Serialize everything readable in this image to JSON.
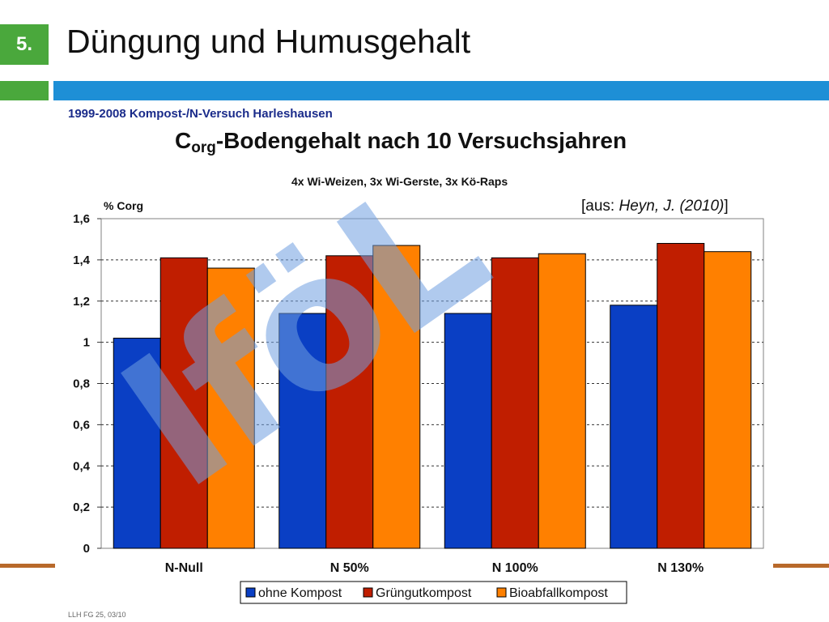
{
  "slide": {
    "number": "5.",
    "title": "Düngung und Humusgehalt",
    "footer": "LLH FG 25, 03/10"
  },
  "header_text": {
    "study": "1999-2008 Kompost-/N-Versuch Harleshausen",
    "title_main": "C",
    "title_sub": "org",
    "title_rest": "-Bodengehalt nach 10 Versuchsjahren",
    "subtitle": "4x Wi-Weizen, 3x Wi-Gerste, 3x Kö-Raps",
    "source_prefix": "[aus: ",
    "source_author": "Heyn, J. (2010)",
    "source_suffix": "]"
  },
  "watermark": {
    "text": "IföL",
    "color": "#6f9fe0"
  },
  "colors": {
    "green": "#4aa83c",
    "blue_strip": "#1e8fd6",
    "brown": "#b8692a"
  },
  "chart_data": {
    "type": "bar",
    "title": "Corg-Bodengehalt nach 10 Versuchsjahren",
    "subtitle": "4x Wi-Weizen, 3x Wi-Gerste, 3x Kö-Raps",
    "ylabel": "% Corg",
    "xlabel": "",
    "ylim": [
      0,
      1.6
    ],
    "yticks": [
      "0",
      "0,2",
      "0,4",
      "0,6",
      "0,8",
      "1",
      "1,2",
      "1,4",
      "1,6"
    ],
    "grid": true,
    "legend_position": "bottom",
    "categories": [
      "N-Null",
      "N 50%",
      "N 100%",
      "N 130%"
    ],
    "series": [
      {
        "name": "ohne Kompost",
        "color": "#0a3fc4",
        "values": [
          1.02,
          1.14,
          1.14,
          1.18
        ]
      },
      {
        "name": "Grüngutkompost",
        "color": "#c01e00",
        "values": [
          1.41,
          1.42,
          1.41,
          1.48
        ]
      },
      {
        "name": "Bioabfallkompost",
        "color": "#ff8000",
        "values": [
          1.36,
          1.47,
          1.43,
          1.44
        ]
      }
    ]
  }
}
